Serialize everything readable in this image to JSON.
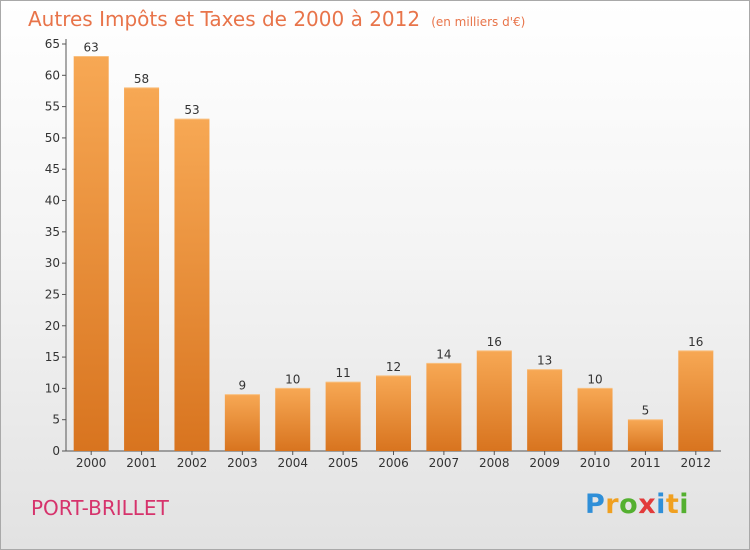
{
  "title": "Autres Impôts et Taxes de 2000 à 2012",
  "unit": "(en milliers d'€)",
  "city": "PORT-BRILLET",
  "logo": {
    "letters": [
      "P",
      "r",
      "o",
      "x",
      "i",
      "t",
      "i"
    ],
    "colors": [
      "#2f8fd8",
      "#f0a020",
      "#54b030",
      "#e23b3b",
      "#2f8fd8",
      "#f0a020",
      "#54b030"
    ]
  },
  "colors": {
    "title": "#e8744a",
    "city": "#d6336c",
    "bar_top": "#f7a854",
    "bar_bottom": "#d8741f",
    "axis": "#555555",
    "grid": "#bbbbbb"
  },
  "chart_data": {
    "type": "bar",
    "categories": [
      "2000",
      "2001",
      "2002",
      "2003",
      "2004",
      "2005",
      "2006",
      "2007",
      "2008",
      "2009",
      "2010",
      "2011",
      "2012"
    ],
    "values": [
      63,
      58,
      53,
      9,
      10,
      11,
      12,
      14,
      16,
      13,
      10,
      5,
      16
    ],
    "yticks": [
      0,
      5,
      10,
      15,
      20,
      25,
      30,
      35,
      40,
      45,
      50,
      55,
      60,
      65
    ],
    "ylim": [
      0,
      65
    ],
    "grid": false,
    "legend": "none",
    "title": "Autres Impôts et Taxes de 2000 à 2012",
    "xlabel": "",
    "ylabel": ""
  }
}
